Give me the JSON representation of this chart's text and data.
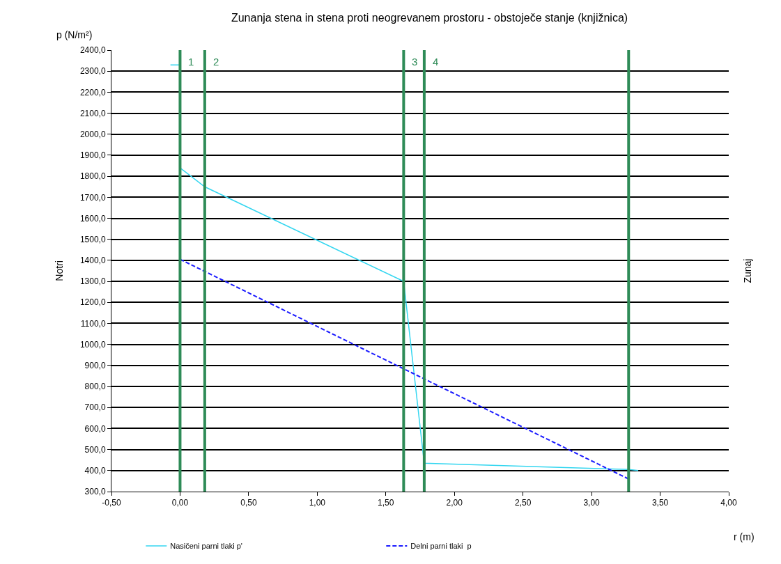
{
  "chart_data": {
    "type": "line",
    "title": "Zunanja stena in stena proti neogrevanem prostoru - obstoječe stanje (knjižnica)",
    "ylabel": "p (N/m²)",
    "xlabel": "r (m)",
    "annotations": [
      "Notri",
      "Zunaj",
      "1",
      "2",
      "3",
      "4"
    ],
    "xlim": [
      -0.5,
      4.0
    ],
    "xticks": [
      {
        "value": -0.5,
        "label": "-0,50"
      },
      {
        "value": 0,
        "label": "0,00"
      },
      {
        "value": 0.5,
        "label": "0,50"
      },
      {
        "value": 1.0,
        "label": "1,00"
      },
      {
        "value": 1.5,
        "label": "1,50"
      },
      {
        "value": 2.0,
        "label": "2,00"
      },
      {
        "value": 2.5,
        "label": "2,50"
      },
      {
        "value": 3.0,
        "label": "3,00"
      },
      {
        "value": 3.5,
        "label": "3,50"
      },
      {
        "value": 4.0,
        "label": "4,00"
      }
    ],
    "ylim": [
      300,
      2400
    ],
    "yticks": [
      {
        "value": 300,
        "label": "300,0"
      },
      {
        "value": 400,
        "label": "400,0"
      },
      {
        "value": 500,
        "label": "500,0"
      },
      {
        "value": 600,
        "label": "600,0"
      },
      {
        "value": 700,
        "label": "700,0"
      },
      {
        "value": 800,
        "label": "800,0"
      },
      {
        "value": 900,
        "label": "900,0"
      },
      {
        "value": 1000,
        "label": "1000,0"
      },
      {
        "value": 1100,
        "label": "1100,0"
      },
      {
        "value": 1200,
        "label": "1200,0"
      },
      {
        "value": 1300,
        "label": "1300,0"
      },
      {
        "value": 1400,
        "label": "1400,0"
      },
      {
        "value": 1500,
        "label": "1500,0"
      },
      {
        "value": 1600,
        "label": "1600,0"
      },
      {
        "value": 1700,
        "label": "1700,0"
      },
      {
        "value": 1800,
        "label": "1800,0"
      },
      {
        "value": 1900,
        "label": "1900,0"
      },
      {
        "value": 2000,
        "label": "2000,0"
      },
      {
        "value": 2100,
        "label": "2100,0"
      },
      {
        "value": 2200,
        "label": "2200,0"
      },
      {
        "value": 2300,
        "label": "2300,0"
      },
      {
        "value": 2400,
        "label": "2400,0"
      }
    ],
    "grid": "y",
    "legend": "bottom",
    "marker": "none",
    "series": [
      {
        "name": "Nasičeni parni tlaki p'",
        "color": "#33d6f0",
        "line_style": "solid",
        "x": [
          -0.07,
          0,
          0,
          0.18,
          1.63,
          1.78,
          3.27,
          3.34
        ],
        "values": [
          2330,
          2330,
          1840,
          1750,
          1300,
          435,
          405,
          400
        ]
      },
      {
        "name": "Delni parni tlaki  p",
        "color": "#1a1aff",
        "line_style": "dashed",
        "x": [
          0,
          3.27
        ],
        "values": [
          1405,
          360
        ]
      }
    ],
    "ref_lines": [
      {
        "axis": "x",
        "value": 0,
        "color": "#2e8b57"
      },
      {
        "axis": "x",
        "value": 0.18,
        "color": "#2e8b57"
      },
      {
        "axis": "x",
        "value": 1.63,
        "color": "#2e8b57"
      },
      {
        "axis": "x",
        "value": 1.78,
        "color": "#2e8b57"
      },
      {
        "axis": "x",
        "value": 3.27,
        "color": "#2e8b57"
      }
    ]
  }
}
